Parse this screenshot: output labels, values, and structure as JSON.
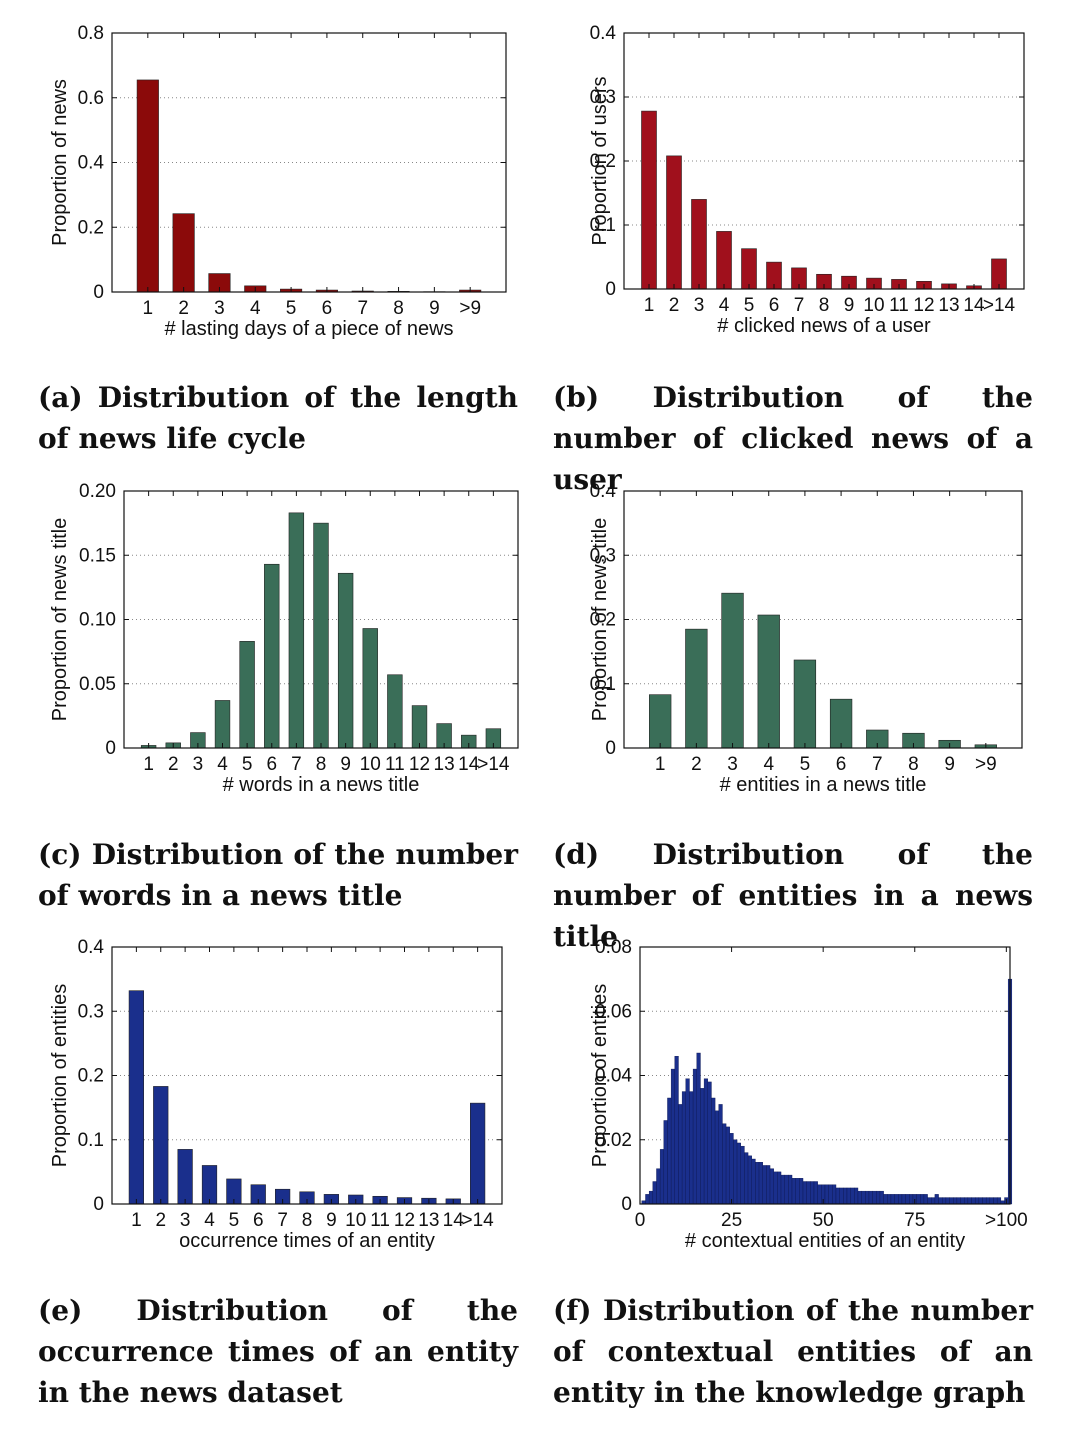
{
  "chart_data": [
    {
      "id": "a",
      "type": "bar",
      "color": "#8b0a0a",
      "categories": [
        "1",
        "2",
        "3",
        "4",
        "5",
        "6",
        "7",
        "8",
        "9",
        ">9"
      ],
      "values": [
        0.655,
        0.242,
        0.057,
        0.019,
        0.009,
        0.006,
        0.003,
        0.002,
        0.001,
        0.006
      ],
      "ylim": [
        0,
        0.8
      ],
      "yticks": [
        "0",
        "0.2",
        "0.4",
        "0.6",
        "0.8"
      ],
      "ytick_values": [
        0,
        0.2,
        0.4,
        0.6,
        0.8
      ],
      "xlabel": "# lasting days of a piece of news",
      "ylabel": "Proportion of news",
      "caption": "(a) Distribution of the length of news life cycle"
    },
    {
      "id": "b",
      "type": "bar",
      "color": "#a0101c",
      "categories": [
        "1",
        "2",
        "3",
        "4",
        "5",
        "6",
        "7",
        "8",
        "9",
        "10",
        "11",
        "12",
        "13",
        "14",
        ">14"
      ],
      "values": [
        0.278,
        0.208,
        0.14,
        0.09,
        0.063,
        0.042,
        0.033,
        0.023,
        0.02,
        0.017,
        0.015,
        0.012,
        0.008,
        0.005,
        0.047
      ],
      "ylim": [
        0,
        0.4
      ],
      "yticks": [
        "0",
        "0.1",
        "0.2",
        "0.3",
        "0.4"
      ],
      "ytick_values": [
        0,
        0.1,
        0.2,
        0.3,
        0.4
      ],
      "xlabel": "# clicked news of a user",
      "ylabel": "Proportion of users",
      "caption": "(b) Distribution of the number of clicked news of a user"
    },
    {
      "id": "c",
      "type": "bar",
      "color": "#3a6e58",
      "categories": [
        "1",
        "2",
        "3",
        "4",
        "5",
        "6",
        "7",
        "8",
        "9",
        "10",
        "11",
        "12",
        "13",
        "14",
        ">14"
      ],
      "values": [
        0.002,
        0.004,
        0.012,
        0.037,
        0.083,
        0.143,
        0.183,
        0.175,
        0.136,
        0.093,
        0.057,
        0.033,
        0.019,
        0.01,
        0.015
      ],
      "ylim": [
        0,
        0.2
      ],
      "yticks": [
        "0",
        "0.05",
        "0.10",
        "0.15",
        "0.20"
      ],
      "ytick_values": [
        0,
        0.05,
        0.1,
        0.15,
        0.2
      ],
      "xlabel": "# words in a news title",
      "ylabel": "Proportion of news title",
      "caption": "(c) Distribution of the number of words in a news title"
    },
    {
      "id": "d",
      "type": "bar",
      "color": "#3a6e58",
      "categories": [
        "1",
        "2",
        "3",
        "4",
        "5",
        "6",
        "7",
        "8",
        "9",
        ">9"
      ],
      "values": [
        0.083,
        0.185,
        0.241,
        0.207,
        0.137,
        0.076,
        0.028,
        0.023,
        0.012,
        0.005
      ],
      "ylim": [
        0,
        0.4
      ],
      "yticks": [
        "0",
        "0.1",
        "0.2",
        "0.3",
        "0.4"
      ],
      "ytick_values": [
        0,
        0.1,
        0.2,
        0.3,
        0.4
      ],
      "xlabel": "# entities in a news title",
      "ylabel": "Proportion of news title",
      "caption": "(d) Distribution of the number of entities in a news title"
    },
    {
      "id": "e",
      "type": "bar",
      "color": "#1a2f8c",
      "categories": [
        "1",
        "2",
        "3",
        "4",
        "5",
        "6",
        "7",
        "8",
        "9",
        "10",
        "11",
        "12",
        "13",
        "14",
        ">14"
      ],
      "values": [
        0.332,
        0.183,
        0.085,
        0.06,
        0.039,
        0.03,
        0.023,
        0.019,
        0.015,
        0.014,
        0.012,
        0.01,
        0.009,
        0.008,
        0.157
      ],
      "ylim": [
        0,
        0.4
      ],
      "yticks": [
        "0",
        "0.1",
        "0.2",
        "0.3",
        "0.4"
      ],
      "ytick_values": [
        0,
        0.1,
        0.2,
        0.3,
        0.4
      ],
      "xlabel": "occurrence times of an entity",
      "ylabel": "Proportion of entities",
      "caption": "(e) Distribution of the occurrence times of an entity in the news dataset"
    },
    {
      "id": "f",
      "type": "bar",
      "subtype": "histogram",
      "color": "#1a2f8c",
      "x_start": 1,
      "values": [
        0.001,
        0.003,
        0.004,
        0.007,
        0.011,
        0.017,
        0.026,
        0.033,
        0.042,
        0.046,
        0.031,
        0.035,
        0.039,
        0.035,
        0.042,
        0.047,
        0.036,
        0.039,
        0.038,
        0.033,
        0.029,
        0.031,
        0.025,
        0.024,
        0.022,
        0.02,
        0.019,
        0.018,
        0.016,
        0.015,
        0.014,
        0.013,
        0.013,
        0.012,
        0.012,
        0.011,
        0.01,
        0.01,
        0.009,
        0.009,
        0.009,
        0.008,
        0.008,
        0.008,
        0.007,
        0.007,
        0.007,
        0.007,
        0.006,
        0.006,
        0.006,
        0.006,
        0.006,
        0.005,
        0.005,
        0.005,
        0.005,
        0.005,
        0.005,
        0.004,
        0.004,
        0.004,
        0.004,
        0.004,
        0.004,
        0.004,
        0.003,
        0.003,
        0.003,
        0.003,
        0.003,
        0.003,
        0.003,
        0.003,
        0.003,
        0.003,
        0.003,
        0.003,
        0.002,
        0.002,
        0.003,
        0.002,
        0.002,
        0.002,
        0.002,
        0.002,
        0.002,
        0.002,
        0.002,
        0.002,
        0.002,
        0.002,
        0.002,
        0.002,
        0.002,
        0.002,
        0.002,
        0.002,
        0.001,
        0.002,
        0.07
      ],
      "ylim": [
        0,
        0.08
      ],
      "xlim": [
        0,
        101
      ],
      "xticks": [
        "0",
        "25",
        "50",
        "75",
        ">100"
      ],
      "xtick_values": [
        0,
        25,
        50,
        75,
        100
      ],
      "yticks": [
        "0",
        "0.02",
        "0.04",
        "0.06",
        "0.08"
      ],
      "ytick_values": [
        0,
        0.02,
        0.04,
        0.06,
        0.08
      ],
      "xlabel": "# contextual entities of an entity",
      "ylabel": "Proportion of entities",
      "caption": "(f) Distribution of the number of contextual entities of an entity in the knowledge graph"
    }
  ]
}
